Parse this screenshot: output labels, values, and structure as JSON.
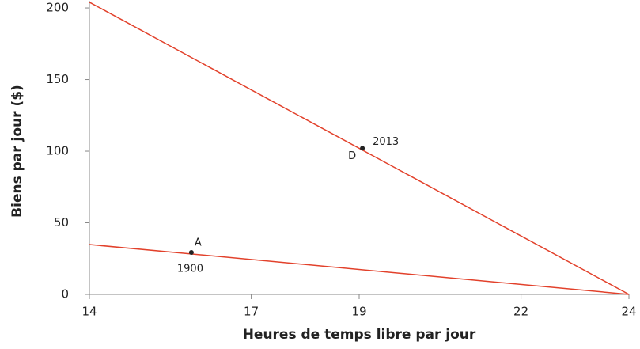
{
  "chart_data": {
    "type": "line",
    "x_label": "Heures de temps libre par jour",
    "y_label": "Biens par jour ($)",
    "series": [
      {
        "name": "2013",
        "color": "#e2412b",
        "x": [
          14,
          24
        ],
        "values": [
          204,
          0
        ]
      },
      {
        "name": "1900",
        "color": "#e2412b",
        "x": [
          14,
          24
        ],
        "values": [
          34.8,
          0
        ]
      }
    ],
    "points": [
      {
        "label": "D",
        "year": "2013",
        "x": 19.06,
        "y": 102
      },
      {
        "label": "A",
        "year": "1900",
        "x": 15.89,
        "y": 29.3
      }
    ],
    "point_color": "#222222",
    "xlim": [
      14,
      24
    ],
    "xticks": [
      14,
      17,
      19,
      22,
      24
    ],
    "ylim": [
      0,
      205
    ],
    "yticks": [
      0,
      50,
      100,
      150,
      200
    ]
  }
}
